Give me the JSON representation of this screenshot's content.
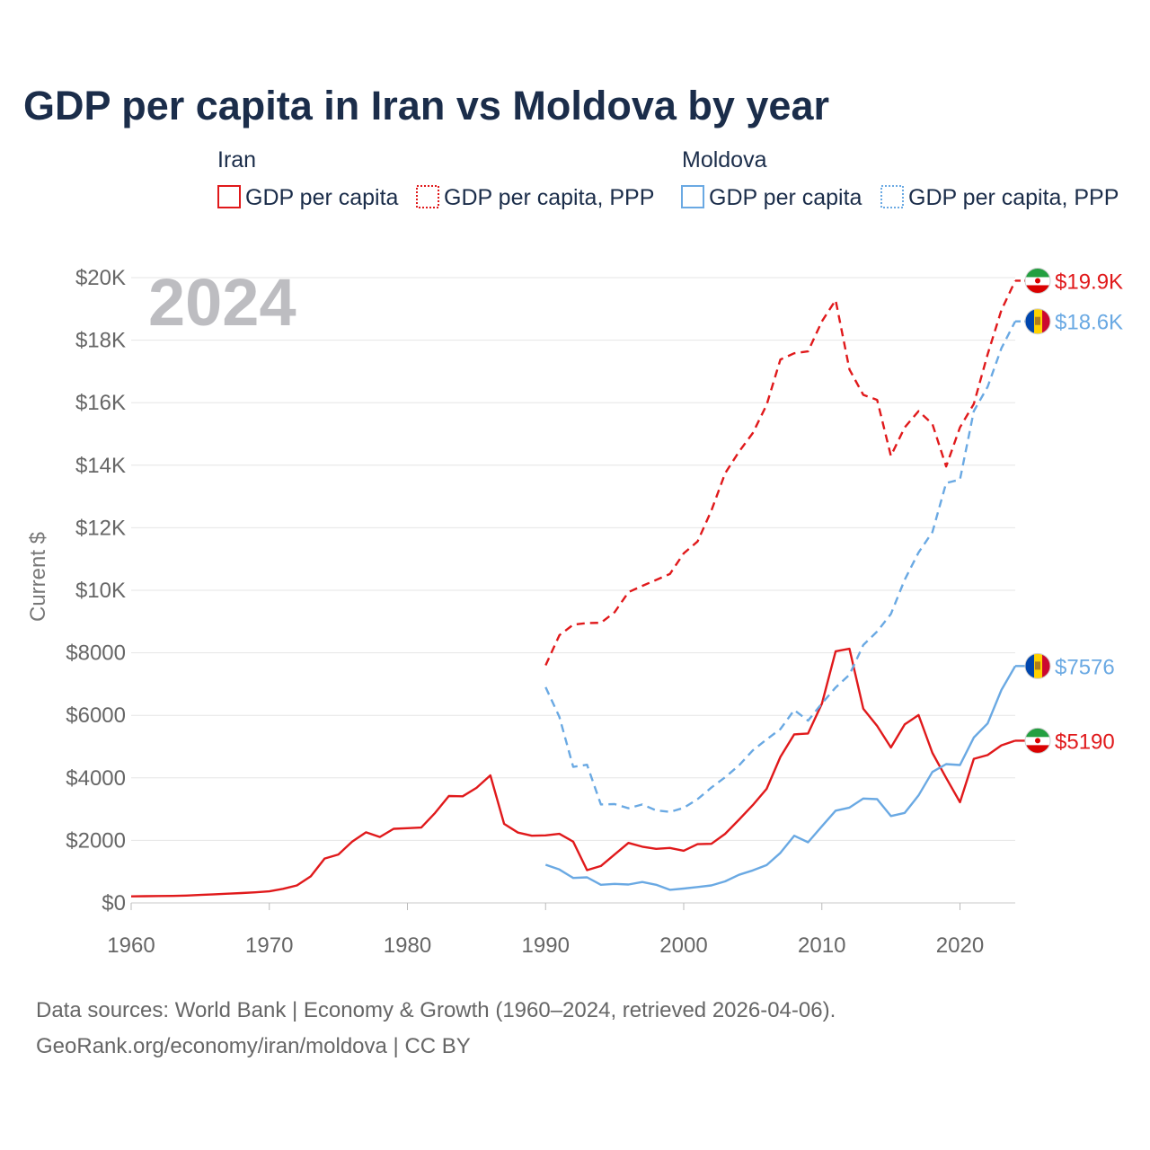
{
  "chart_data": {
    "type": "line",
    "title": "GDP per capita in Iran vs Moldova by year",
    "ylabel": "Current $",
    "xlim": [
      1960,
      2024
    ],
    "ylim": [
      0,
      20000
    ],
    "x_ticks": [
      1960,
      1970,
      1980,
      1990,
      2000,
      2010,
      2020
    ],
    "x_tick_labels": [
      "1960",
      "1970",
      "1980",
      "1990",
      "2000",
      "2010",
      "2020"
    ],
    "y_ticks": [
      0,
      2000,
      4000,
      6000,
      8000,
      10000,
      12000,
      14000,
      16000,
      18000,
      20000
    ],
    "y_tick_labels": [
      "$0",
      "$2000",
      "$4000",
      "$6000",
      "$8000",
      "$10K",
      "$12K",
      "$14K",
      "$16K",
      "$18K",
      "$20K"
    ],
    "year_overlay": "2024",
    "legend": {
      "groups": [
        {
          "country": "Iran",
          "items": [
            "GDP per capita",
            "GDP per capita, PPP"
          ]
        },
        {
          "country": "Moldova",
          "items": [
            "GDP per capita",
            "GDP per capita, PPP"
          ]
        }
      ]
    },
    "series": [
      {
        "name": "Iran GDP per capita",
        "color": "#e0191b",
        "style": "solid",
        "end_label": "$5190",
        "x": [
          1960,
          1961,
          1962,
          1963,
          1964,
          1965,
          1966,
          1967,
          1968,
          1969,
          1970,
          1971,
          1972,
          1973,
          1974,
          1975,
          1976,
          1977,
          1978,
          1979,
          1980,
          1981,
          1982,
          1983,
          1984,
          1985,
          1986,
          1987,
          1988,
          1989,
          1990,
          1991,
          1992,
          1993,
          1994,
          1995,
          1996,
          1997,
          1998,
          1999,
          2000,
          2001,
          2002,
          2003,
          2004,
          2005,
          2006,
          2007,
          2008,
          2009,
          2010,
          2011,
          2012,
          2013,
          2014,
          2015,
          2016,
          2017,
          2018,
          2019,
          2020,
          2021,
          2022,
          2023,
          2024
        ],
        "values": [
          210,
          215,
          220,
          225,
          235,
          255,
          275,
          295,
          315,
          340,
          370,
          450,
          560,
          850,
          1420,
          1550,
          1960,
          2260,
          2110,
          2370,
          2390,
          2410,
          2880,
          3420,
          3410,
          3680,
          4080,
          2530,
          2250,
          2150,
          2160,
          2210,
          1960,
          1050,
          1180,
          1550,
          1920,
          1800,
          1730,
          1760,
          1670,
          1880,
          1890,
          2210,
          2660,
          3130,
          3650,
          4670,
          5390,
          5420,
          6370,
          8050,
          8130,
          6210,
          5660,
          4970,
          5710,
          6010,
          4800,
          4000,
          3220,
          4610,
          4730,
          5040,
          5190
        ]
      },
      {
        "name": "Iran GDP per capita, PPP",
        "color": "#e0191b",
        "style": "dashed",
        "end_label": "$19.9K",
        "x": [
          1990,
          1991,
          1992,
          1993,
          1994,
          1995,
          1996,
          1997,
          1998,
          1999,
          2000,
          2001,
          2002,
          2003,
          2004,
          2005,
          2006,
          2007,
          2008,
          2009,
          2010,
          2011,
          2012,
          2013,
          2014,
          2015,
          2016,
          2017,
          2018,
          2019,
          2020,
          2021,
          2022,
          2023,
          2024
        ],
        "values": [
          7600,
          8560,
          8900,
          8950,
          8960,
          9300,
          9940,
          10140,
          10330,
          10520,
          11180,
          11560,
          12550,
          13740,
          14430,
          15030,
          15930,
          17380,
          17580,
          17640,
          18600,
          19280,
          17060,
          16250,
          16090,
          14300,
          15210,
          15730,
          15320,
          13960,
          15210,
          15960,
          17550,
          18960,
          19900
        ]
      },
      {
        "name": "Moldova GDP per capita",
        "color": "#6aa9e3",
        "style": "solid",
        "end_label": "$7576",
        "x": [
          1990,
          1991,
          1992,
          1993,
          1994,
          1995,
          1996,
          1997,
          1998,
          1999,
          2000,
          2001,
          2002,
          2003,
          2004,
          2005,
          2006,
          2007,
          2008,
          2009,
          2010,
          2011,
          2012,
          2013,
          2014,
          2015,
          2016,
          2017,
          2018,
          2019,
          2020,
          2021,
          2022,
          2023,
          2024
        ],
        "values": [
          1220,
          1070,
          800,
          820,
          580,
          610,
          590,
          670,
          580,
          420,
          460,
          510,
          560,
          690,
          900,
          1040,
          1210,
          1600,
          2150,
          1940,
          2450,
          2950,
          3050,
          3340,
          3320,
          2780,
          2880,
          3440,
          4190,
          4440,
          4410,
          5290,
          5740,
          6810,
          7576
        ]
      },
      {
        "name": "Moldova GDP per capita, PPP",
        "color": "#6aa9e3",
        "style": "dashed",
        "end_label": "$18.6K",
        "x": [
          1990,
          1991,
          1992,
          1993,
          1994,
          1995,
          1996,
          1997,
          1998,
          1999,
          2000,
          2001,
          2002,
          2003,
          2004,
          2005,
          2006,
          2007,
          2008,
          2009,
          2010,
          2011,
          2012,
          2013,
          2014,
          2015,
          2016,
          2017,
          2018,
          2019,
          2020,
          2021,
          2022,
          2023,
          2024
        ],
        "values": [
          6900,
          5950,
          4350,
          4420,
          3150,
          3160,
          3030,
          3150,
          2960,
          2910,
          3040,
          3320,
          3690,
          4020,
          4400,
          4880,
          5230,
          5560,
          6170,
          5830,
          6380,
          6890,
          7300,
          8250,
          8680,
          9240,
          10340,
          11210,
          11860,
          13430,
          13540,
          15730,
          16510,
          17740,
          18600
        ]
      }
    ],
    "source_lines": [
      "Data sources: World Bank | Economy & Growth (1960–2024, retrieved 2026-04-06).",
      "GeoRank.org/economy/iran/moldova | CC BY"
    ]
  }
}
